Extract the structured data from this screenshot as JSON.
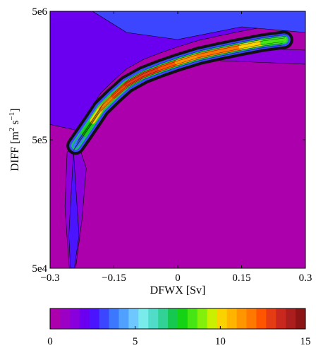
{
  "chart_data": [
    {
      "type": "contour",
      "xlabel": "DFWX [Sv]",
      "ylabel_main": "DIFF [m",
      "ylabel_exp1": "2",
      "ylabel_mid": " s",
      "ylabel_exp2": "−1",
      "ylabel_end": "]",
      "xlim": [
        -0.3,
        0.3
      ],
      "ylim": [
        50000,
        5000000
      ],
      "yscale": "log",
      "x_ticks": [
        -0.3,
        -0.15,
        0,
        0.15,
        0.3
      ],
      "x_tick_labels": [
        "−0.3",
        "−0.15",
        "0",
        "0.15",
        "0.3"
      ],
      "y_ticks": [
        50000,
        500000,
        5000000
      ],
      "y_tick_labels": [
        "5e4",
        "5e5",
        "5e6"
      ],
      "ridge_x": [
        -0.24,
        -0.22,
        -0.2,
        -0.18,
        -0.15,
        -0.12,
        -0.08,
        -0.04,
        0.0,
        0.05,
        0.1,
        0.15,
        0.2,
        0.25
      ],
      "ridge_y": [
        450000,
        560000,
        700000,
        880000,
        1100000,
        1350000,
        1600000,
        1800000,
        2000000,
        2250000,
        2450000,
        2650000,
        2850000,
        3000000
      ],
      "ridge_peak_values": [
        2,
        6,
        9,
        11,
        12,
        13,
        13.5,
        13,
        12,
        11,
        12.5,
        11,
        9,
        8
      ]
    },
    {
      "type": "colorbar",
      "range": [
        0,
        15
      ],
      "ticks": [
        0,
        5,
        10,
        15
      ],
      "tick_labels": [
        "0",
        "5",
        "10",
        "15"
      ],
      "colors": [
        "#ad00ad",
        "#9d00c5",
        "#8a00dc",
        "#6a00ef",
        "#4b14ff",
        "#3c46ff",
        "#3c78ff",
        "#50a0ff",
        "#6ec8ff",
        "#78ebea",
        "#50dcc8",
        "#32d296",
        "#14c850",
        "#14d214",
        "#46e614",
        "#82f00a",
        "#c8f000",
        "#fad200",
        "#ffb400",
        "#ff9600",
        "#ff7800",
        "#ff5500",
        "#e63c14",
        "#c8281e",
        "#aa1e1e",
        "#8c1414"
      ]
    }
  ]
}
